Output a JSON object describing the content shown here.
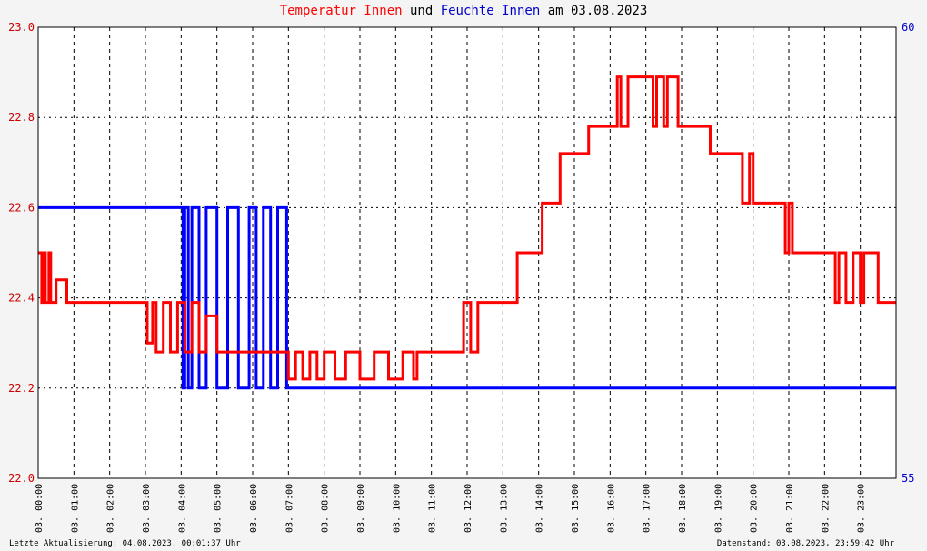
{
  "title": {
    "part1": "Temperatur Innen",
    "part2": " und ",
    "part3": "Feuchte Innen",
    "part4": " am 03.08.2023"
  },
  "footer": {
    "left": "Letzte Aktualisierung: 04.08.2023, 00:01:37 Uhr",
    "right": "Datenstand: 03.08.2023, 23:59:42 Uhr"
  },
  "chart_data": {
    "type": "line",
    "title": "Temperatur Innen und Feuchte Innen am 03.08.2023",
    "xlabel": "",
    "ylabel": "",
    "x_range_hours": [
      0,
      24
    ],
    "y_left_range": [
      22.0,
      23.0
    ],
    "y_right_range": [
      55,
      60
    ],
    "y_left_ticks": [
      "22.0",
      "22.2",
      "22.4",
      "22.6",
      "22.8",
      "23.0"
    ],
    "y_right_ticks": [
      "55",
      "60"
    ],
    "x_ticks": [
      "03. 00:00",
      "03. 01:00",
      "03. 02:00",
      "03. 03:00",
      "03. 04:00",
      "03. 05:00",
      "03. 06:00",
      "03. 07:00",
      "03. 08:00",
      "03. 09:00",
      "03. 10:00",
      "03. 11:00",
      "03. 12:00",
      "03. 13:00",
      "03. 14:00",
      "03. 15:00",
      "03. 16:00",
      "03. 17:00",
      "03. 18:00",
      "03. 19:00",
      "03. 20:00",
      "03. 21:00",
      "03. 22:00",
      "03. 23:00"
    ],
    "grid": true,
    "colors": {
      "temperature": "#ff0000",
      "humidity": "#0000ff",
      "background": "#ffffff",
      "page": "#f4f4f4"
    },
    "series": [
      {
        "name": "Temperatur Innen",
        "axis": "left",
        "x": [
          0.0,
          0.1,
          0.15,
          0.2,
          0.3,
          0.35,
          0.5,
          0.8,
          3.0,
          3.05,
          3.2,
          3.3,
          3.5,
          3.7,
          3.9,
          4.1,
          4.3,
          4.5,
          4.7,
          5.0,
          6.0,
          6.9,
          7.0,
          7.2,
          7.4,
          7.6,
          7.8,
          8.0,
          8.3,
          8.6,
          9.0,
          9.4,
          9.8,
          10.2,
          10.5,
          10.6,
          11.0,
          11.8,
          11.9,
          12.1,
          12.3,
          12.5,
          13.3,
          13.4,
          14.0,
          14.1,
          14.4,
          14.6,
          15.0,
          15.3,
          15.4,
          15.9,
          16.0,
          16.2,
          16.3,
          16.5,
          17.0,
          17.2,
          17.3,
          17.5,
          17.6,
          17.9,
          18.2,
          18.6,
          18.8,
          19.0,
          19.6,
          19.7,
          19.9,
          20.0,
          20.3,
          20.7,
          20.9,
          21.0,
          21.1,
          21.4,
          22.0,
          22.3,
          22.4,
          22.6,
          22.8,
          23.0,
          23.1,
          23.5,
          24.0
        ],
        "values": [
          22.5,
          22.39,
          22.5,
          22.39,
          22.5,
          22.39,
          22.44,
          22.39,
          22.39,
          22.3,
          22.39,
          22.28,
          22.39,
          22.28,
          22.39,
          22.28,
          22.39,
          22.28,
          22.36,
          22.28,
          22.28,
          22.28,
          22.22,
          22.28,
          22.22,
          22.28,
          22.22,
          22.28,
          22.22,
          22.28,
          22.22,
          22.28,
          22.22,
          22.28,
          22.22,
          22.28,
          22.28,
          22.28,
          22.39,
          22.28,
          22.39,
          22.39,
          22.39,
          22.5,
          22.5,
          22.61,
          22.61,
          22.72,
          22.72,
          22.72,
          22.78,
          22.78,
          22.78,
          22.89,
          22.78,
          22.89,
          22.89,
          22.78,
          22.89,
          22.78,
          22.89,
          22.78,
          22.78,
          22.78,
          22.72,
          22.72,
          22.72,
          22.61,
          22.72,
          22.61,
          22.61,
          22.61,
          22.5,
          22.61,
          22.5,
          22.5,
          22.5,
          22.39,
          22.5,
          22.39,
          22.5,
          22.39,
          22.5,
          22.39,
          22.39
        ]
      },
      {
        "name": "Feuchte Innen",
        "axis": "right",
        "x": [
          0.0,
          4.0,
          4.05,
          4.1,
          4.2,
          4.3,
          4.5,
          4.7,
          5.0,
          5.3,
          5.6,
          5.9,
          6.1,
          6.3,
          6.5,
          6.7,
          6.95,
          7.0,
          24.0
        ],
        "values": [
          58.0,
          58.0,
          56.0,
          58.0,
          56.0,
          58.0,
          56.0,
          58.0,
          56.0,
          58.0,
          56.0,
          58.0,
          56.0,
          58.0,
          56.0,
          58.0,
          56.0,
          56.0,
          56.0
        ]
      }
    ]
  }
}
